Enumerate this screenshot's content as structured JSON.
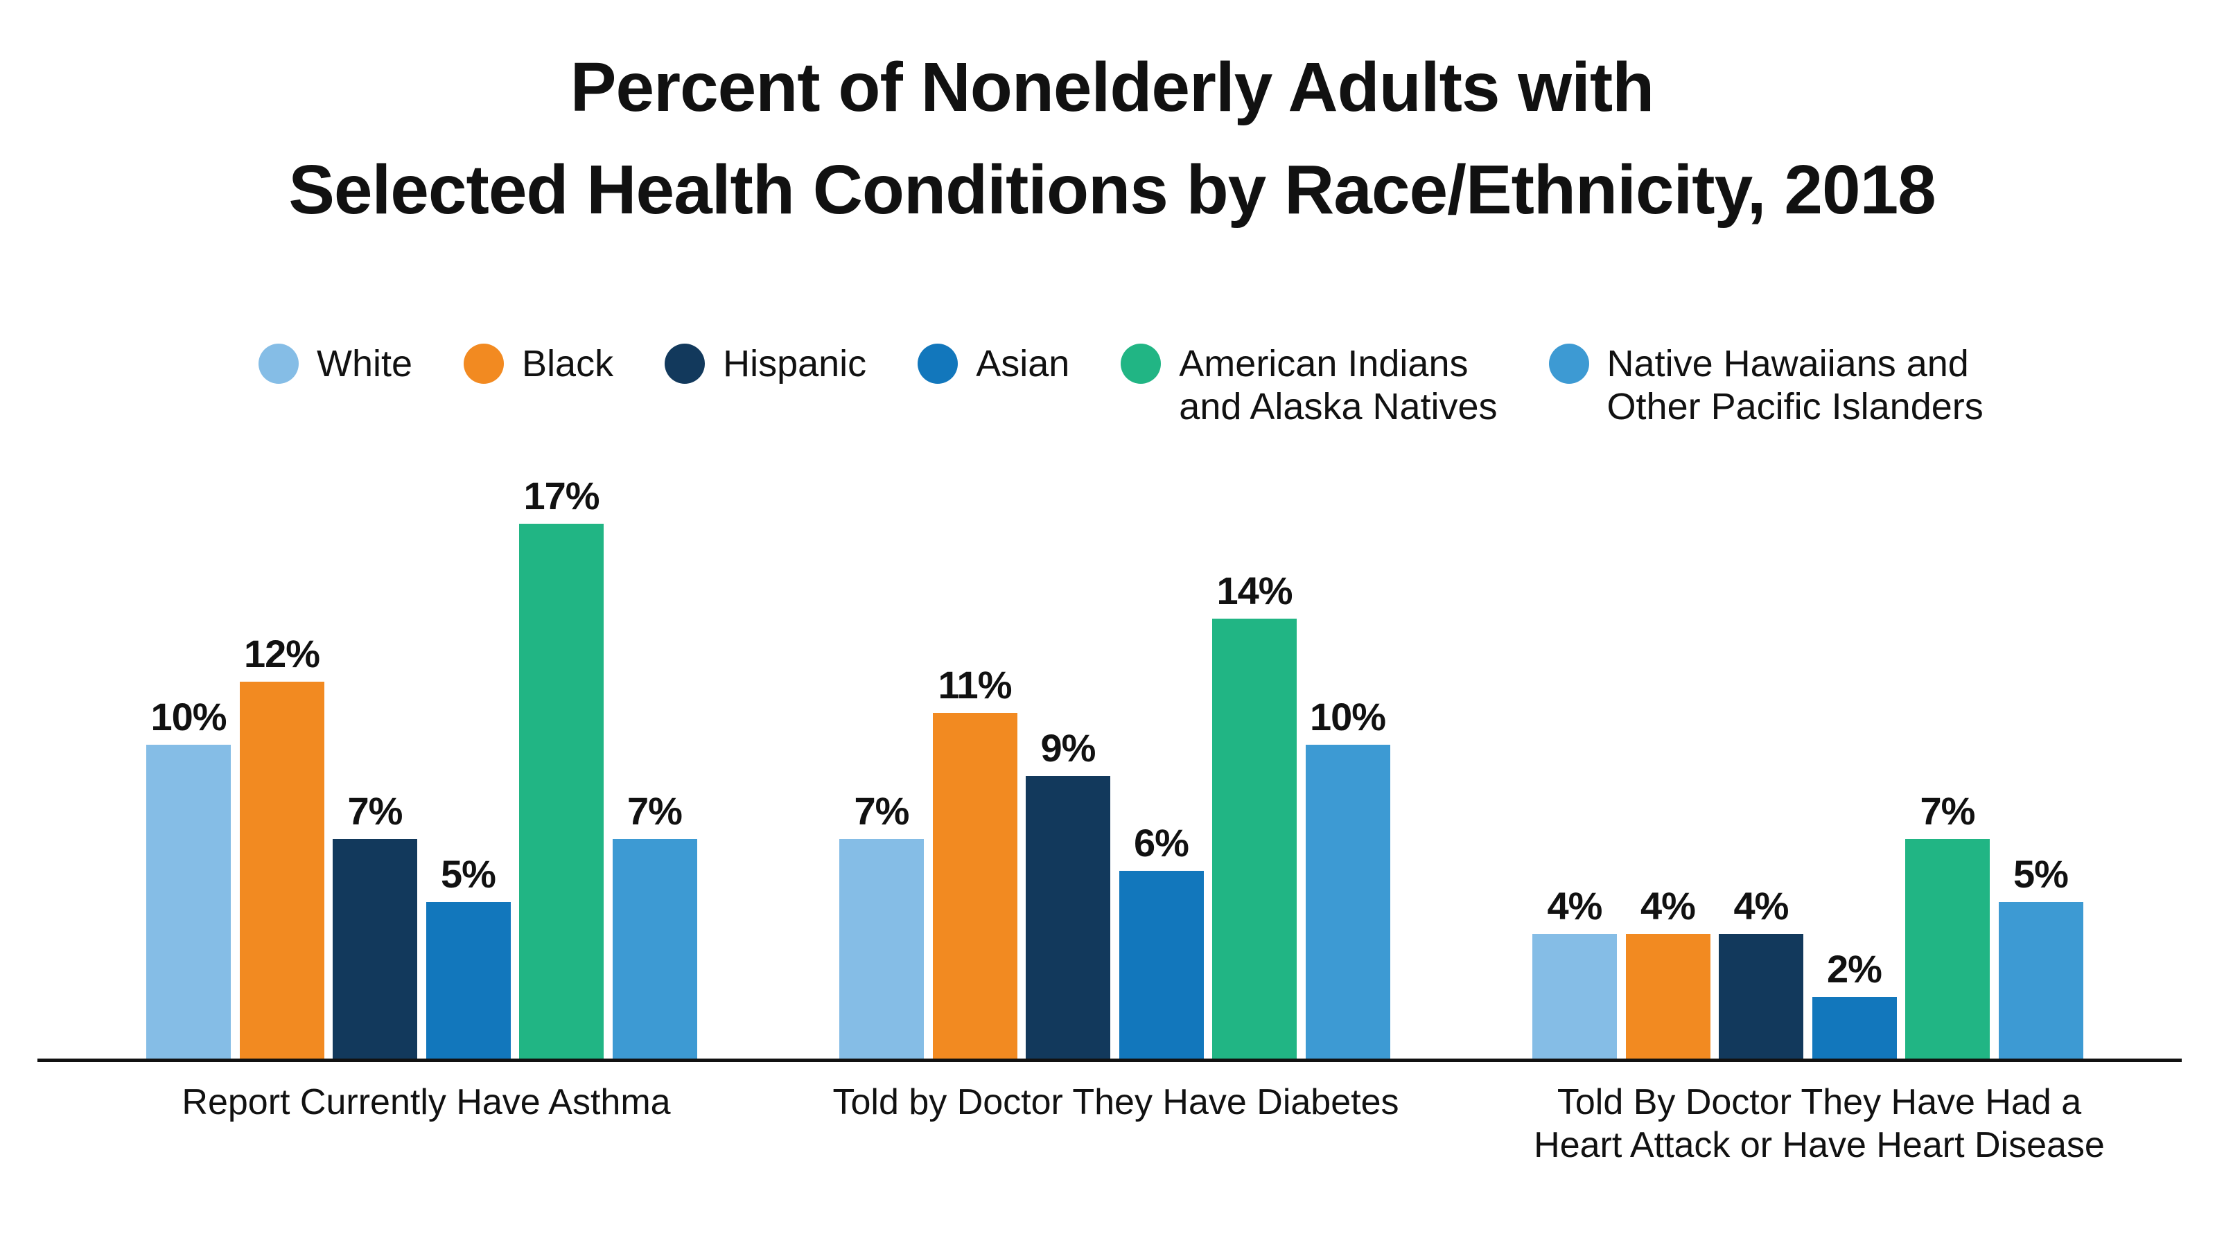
{
  "title": {
    "line1": "Percent of Nonelderly Adults with",
    "line2": "Selected Health Conditions by Race/Ethnicity, 2018"
  },
  "legend": {
    "items": [
      {
        "name": "White",
        "lines": [
          "White"
        ],
        "color": "#85BDE6"
      },
      {
        "name": "Black",
        "lines": [
          "Black"
        ],
        "color": "#F28A21"
      },
      {
        "name": "Hispanic",
        "lines": [
          "Hispanic"
        ],
        "color": "#12395C"
      },
      {
        "name": "Asian",
        "lines": [
          "Asian"
        ],
        "color": "#1277BC"
      },
      {
        "name": "American Indians and Alaska Natives",
        "lines": [
          "American Indians",
          "and Alaska Natives"
        ],
        "color": "#21B584"
      },
      {
        "name": "Native Hawaiians and Other Pacific Islanders",
        "lines": [
          "Native Hawaiians and",
          "Other Pacific Islanders"
        ],
        "color": "#3D9AD3"
      }
    ]
  },
  "chart_data": {
    "type": "bar",
    "title": "Percent of Nonelderly Adults with Selected Health Conditions by Race/Ethnicity, 2018",
    "categories": [
      "Report Currently Have Asthma",
      "Told by Doctor They Have Diabetes",
      "Told By Doctor They Have Had a Heart Attack or Have Heart Disease"
    ],
    "categories_display": [
      [
        "Report Currently Have Asthma"
      ],
      [
        "Told by Doctor They Have Diabetes"
      ],
      [
        "Told By Doctor They Have Had a",
        "Heart Attack or Have Heart Disease"
      ]
    ],
    "series": [
      {
        "name": "White",
        "color": "#85BDE6",
        "values": [
          10,
          7,
          4
        ]
      },
      {
        "name": "Black",
        "color": "#F28A21",
        "values": [
          12,
          11,
          4
        ]
      },
      {
        "name": "Hispanic",
        "color": "#12395C",
        "values": [
          7,
          9,
          4
        ]
      },
      {
        "name": "Asian",
        "color": "#1277BC",
        "values": [
          5,
          6,
          2
        ]
      },
      {
        "name": "American Indians and Alaska Natives",
        "color": "#21B584",
        "values": [
          17,
          14,
          7
        ]
      },
      {
        "name": "Native Hawaiians and Other Pacific Islanders",
        "color": "#3D9AD3",
        "values": [
          7,
          10,
          5
        ]
      }
    ],
    "value_suffix": "%",
    "data_labels": true,
    "xlabel": "",
    "ylabel": "",
    "ylim": [
      0,
      17.5
    ],
    "grid": false,
    "legend_position": "top",
    "axis_color": "#111111"
  }
}
